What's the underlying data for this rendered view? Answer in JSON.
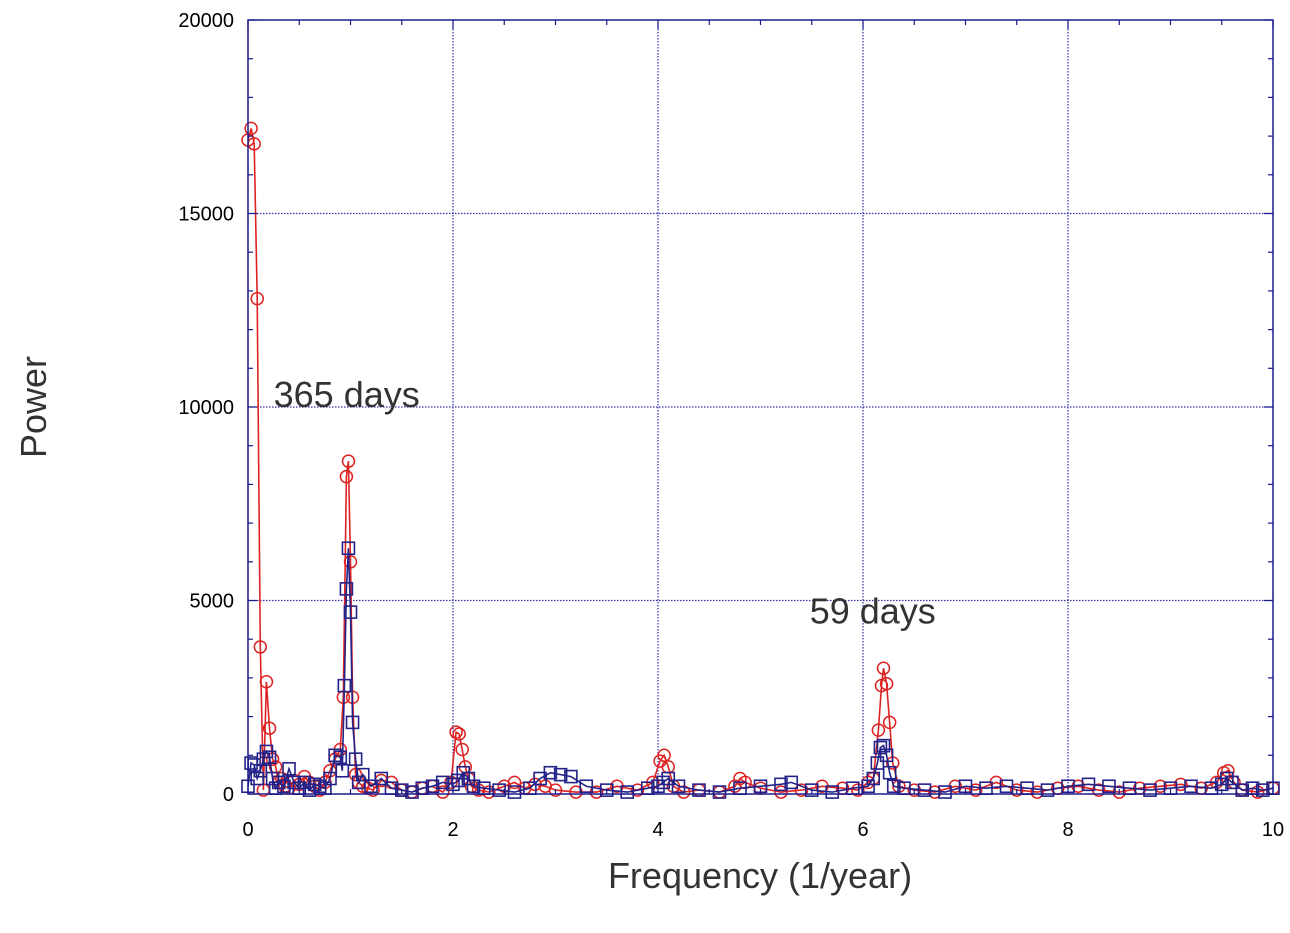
{
  "chart_data": {
    "type": "line",
    "xlabel": "Frequency (1/year)",
    "ylabel": "Power",
    "xlim": [
      0,
      10
    ],
    "ylim": [
      0,
      20000
    ],
    "x_ticks": [
      "0",
      "2",
      "4",
      "6",
      "8",
      "10"
    ],
    "y_ticks": [
      "0",
      "5000",
      "10000",
      "15000",
      "20000"
    ],
    "grid": true,
    "colors": {
      "axis": "#1a1a8c",
      "grid": "#3333aa",
      "series_circle": "#dd2222",
      "series_square": "#222288"
    },
    "annotations": [
      {
        "text": "365 days",
        "x": 0.25,
        "y": 10000
      },
      {
        "text": "59 days",
        "x": 5.48,
        "y": 4400
      }
    ],
    "series": [
      {
        "marker": "circle",
        "color": "#dd2222",
        "x": [
          0.0,
          0.03,
          0.06,
          0.09,
          0.12,
          0.15,
          0.18,
          0.21,
          0.24,
          0.27,
          0.3,
          0.33,
          0.36,
          0.4,
          0.45,
          0.5,
          0.55,
          0.6,
          0.65,
          0.7,
          0.75,
          0.8,
          0.85,
          0.9,
          0.93,
          0.96,
          0.98,
          1.0,
          1.02,
          1.05,
          1.08,
          1.12,
          1.17,
          1.22,
          1.3,
          1.4,
          1.5,
          1.6,
          1.7,
          1.8,
          1.9,
          1.98,
          2.03,
          2.06,
          2.09,
          2.12,
          2.15,
          2.18,
          2.25,
          2.35,
          2.5,
          2.6,
          2.7,
          2.8,
          2.9,
          3.0,
          3.2,
          3.4,
          3.6,
          3.8,
          3.95,
          4.02,
          4.06,
          4.1,
          4.15,
          4.25,
          4.4,
          4.6,
          4.75,
          4.8,
          4.85,
          5.0,
          5.2,
          5.4,
          5.6,
          5.8,
          5.95,
          6.05,
          6.1,
          6.15,
          6.18,
          6.2,
          6.23,
          6.26,
          6.29,
          6.35,
          6.5,
          6.7,
          6.9,
          7.1,
          7.3,
          7.5,
          7.7,
          7.9,
          8.1,
          8.3,
          8.5,
          8.7,
          8.9,
          9.1,
          9.3,
          9.45,
          9.52,
          9.56,
          9.62,
          9.7,
          9.85,
          10.0
        ],
        "values": [
          16900,
          17200,
          16800,
          12800,
          3800,
          100,
          2900,
          1700,
          900,
          700,
          300,
          400,
          200,
          150,
          350,
          250,
          450,
          300,
          200,
          100,
          300,
          600,
          900,
          1150,
          2500,
          8200,
          8600,
          6000,
          2500,
          500,
          300,
          200,
          150,
          100,
          350,
          300,
          100,
          50,
          150,
          200,
          50,
          300,
          1600,
          1550,
          1150,
          700,
          400,
          200,
          100,
          50,
          200,
          300,
          150,
          250,
          200,
          100,
          50,
          50,
          200,
          100,
          300,
          850,
          1000,
          700,
          200,
          50,
          100,
          50,
          200,
          400,
          300,
          150,
          50,
          100,
          200,
          150,
          100,
          300,
          400,
          1650,
          2800,
          3250,
          2850,
          1850,
          800,
          200,
          100,
          50,
          200,
          100,
          300,
          100,
          50,
          150,
          200,
          100,
          50,
          150,
          200,
          250,
          150,
          300,
          550,
          600,
          300,
          100,
          50,
          150
        ]
      },
      {
        "marker": "square",
        "color": "#222288",
        "x": [
          0.0,
          0.03,
          0.06,
          0.09,
          0.12,
          0.15,
          0.18,
          0.21,
          0.24,
          0.27,
          0.3,
          0.35,
          0.4,
          0.45,
          0.5,
          0.55,
          0.6,
          0.65,
          0.7,
          0.75,
          0.8,
          0.85,
          0.9,
          0.92,
          0.94,
          0.96,
          0.98,
          1.0,
          1.02,
          1.05,
          1.08,
          1.12,
          1.2,
          1.3,
          1.4,
          1.5,
          1.6,
          1.7,
          1.8,
          1.9,
          2.0,
          2.05,
          2.1,
          2.15,
          2.2,
          2.3,
          2.45,
          2.6,
          2.75,
          2.85,
          2.95,
          3.05,
          3.15,
          3.3,
          3.5,
          3.7,
          3.9,
          4.0,
          4.05,
          4.1,
          4.2,
          4.4,
          4.6,
          4.8,
          5.0,
          5.2,
          5.3,
          5.5,
          5.7,
          5.9,
          6.05,
          6.1,
          6.14,
          6.17,
          6.2,
          6.23,
          6.26,
          6.3,
          6.4,
          6.6,
          6.8,
          7.0,
          7.2,
          7.4,
          7.6,
          7.8,
          8.0,
          8.2,
          8.4,
          8.6,
          8.8,
          9.0,
          9.2,
          9.4,
          9.5,
          9.55,
          9.6,
          9.7,
          9.8,
          9.9,
          10.0
        ],
        "values": [
          200,
          800,
          750,
          400,
          600,
          900,
          1100,
          950,
          400,
          150,
          300,
          200,
          650,
          300,
          150,
          300,
          100,
          250,
          200,
          150,
          400,
          1000,
          950,
          600,
          2800,
          5300,
          6350,
          4700,
          1850,
          900,
          300,
          500,
          200,
          400,
          150,
          100,
          50,
          150,
          200,
          300,
          250,
          350,
          550,
          400,
          200,
          150,
          100,
          50,
          150,
          400,
          550,
          500,
          450,
          200,
          100,
          50,
          150,
          200,
          300,
          400,
          200,
          100,
          50,
          150,
          200,
          250,
          300,
          100,
          50,
          150,
          200,
          400,
          800,
          1200,
          1250,
          1000,
          550,
          200,
          150,
          100,
          50,
          200,
          150,
          200,
          150,
          100,
          200,
          250,
          200,
          150,
          100,
          150,
          200,
          150,
          250,
          400,
          300,
          100,
          150,
          100,
          150
        ]
      }
    ]
  }
}
